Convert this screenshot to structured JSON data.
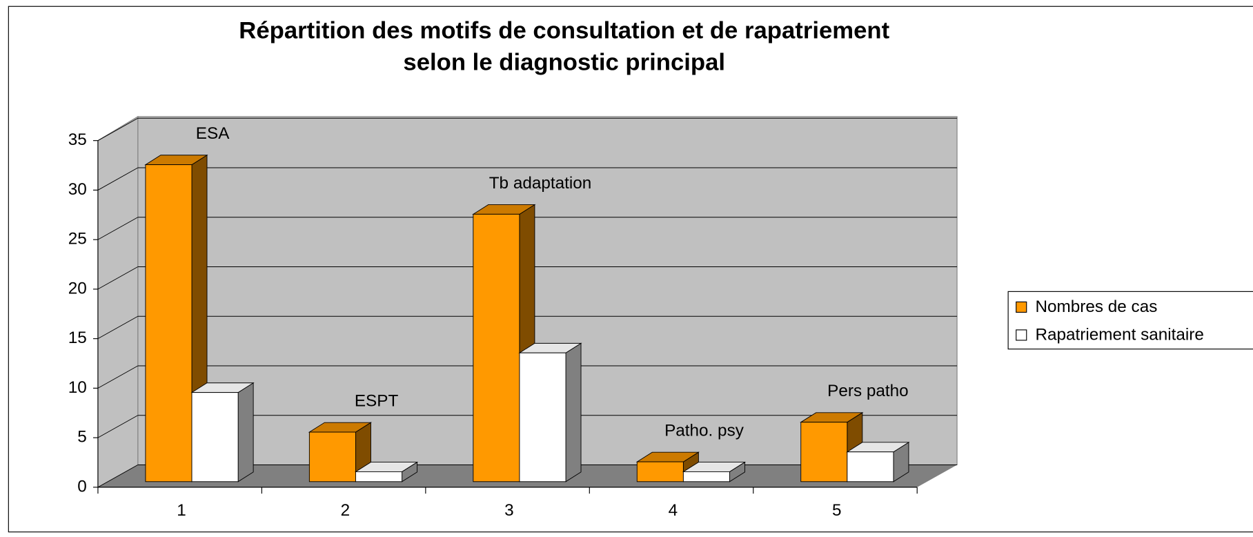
{
  "chart_data": {
    "type": "bar3d",
    "title": [
      "Répartition des motifs de consultation et de rapatriement",
      "selon le diagnostic principal"
    ],
    "categories": [
      "1",
      "2",
      "3",
      "4",
      "5"
    ],
    "annotations": [
      "ESA",
      "ESPT",
      "Tb adaptation",
      "Patho. psy",
      "Pers patho"
    ],
    "series": [
      {
        "name": "Nombres de cas",
        "color": "#ff9900",
        "values": [
          32,
          5,
          27,
          2,
          6
        ]
      },
      {
        "name": "Rapatriement sanitaire",
        "color": "#ffffff",
        "values": [
          9,
          1,
          13,
          1,
          3
        ]
      }
    ],
    "ylim": [
      0,
      35
    ],
    "yticks": [
      0,
      5,
      10,
      15,
      20,
      25,
      30,
      35
    ],
    "grid": true,
    "legend": "right"
  }
}
